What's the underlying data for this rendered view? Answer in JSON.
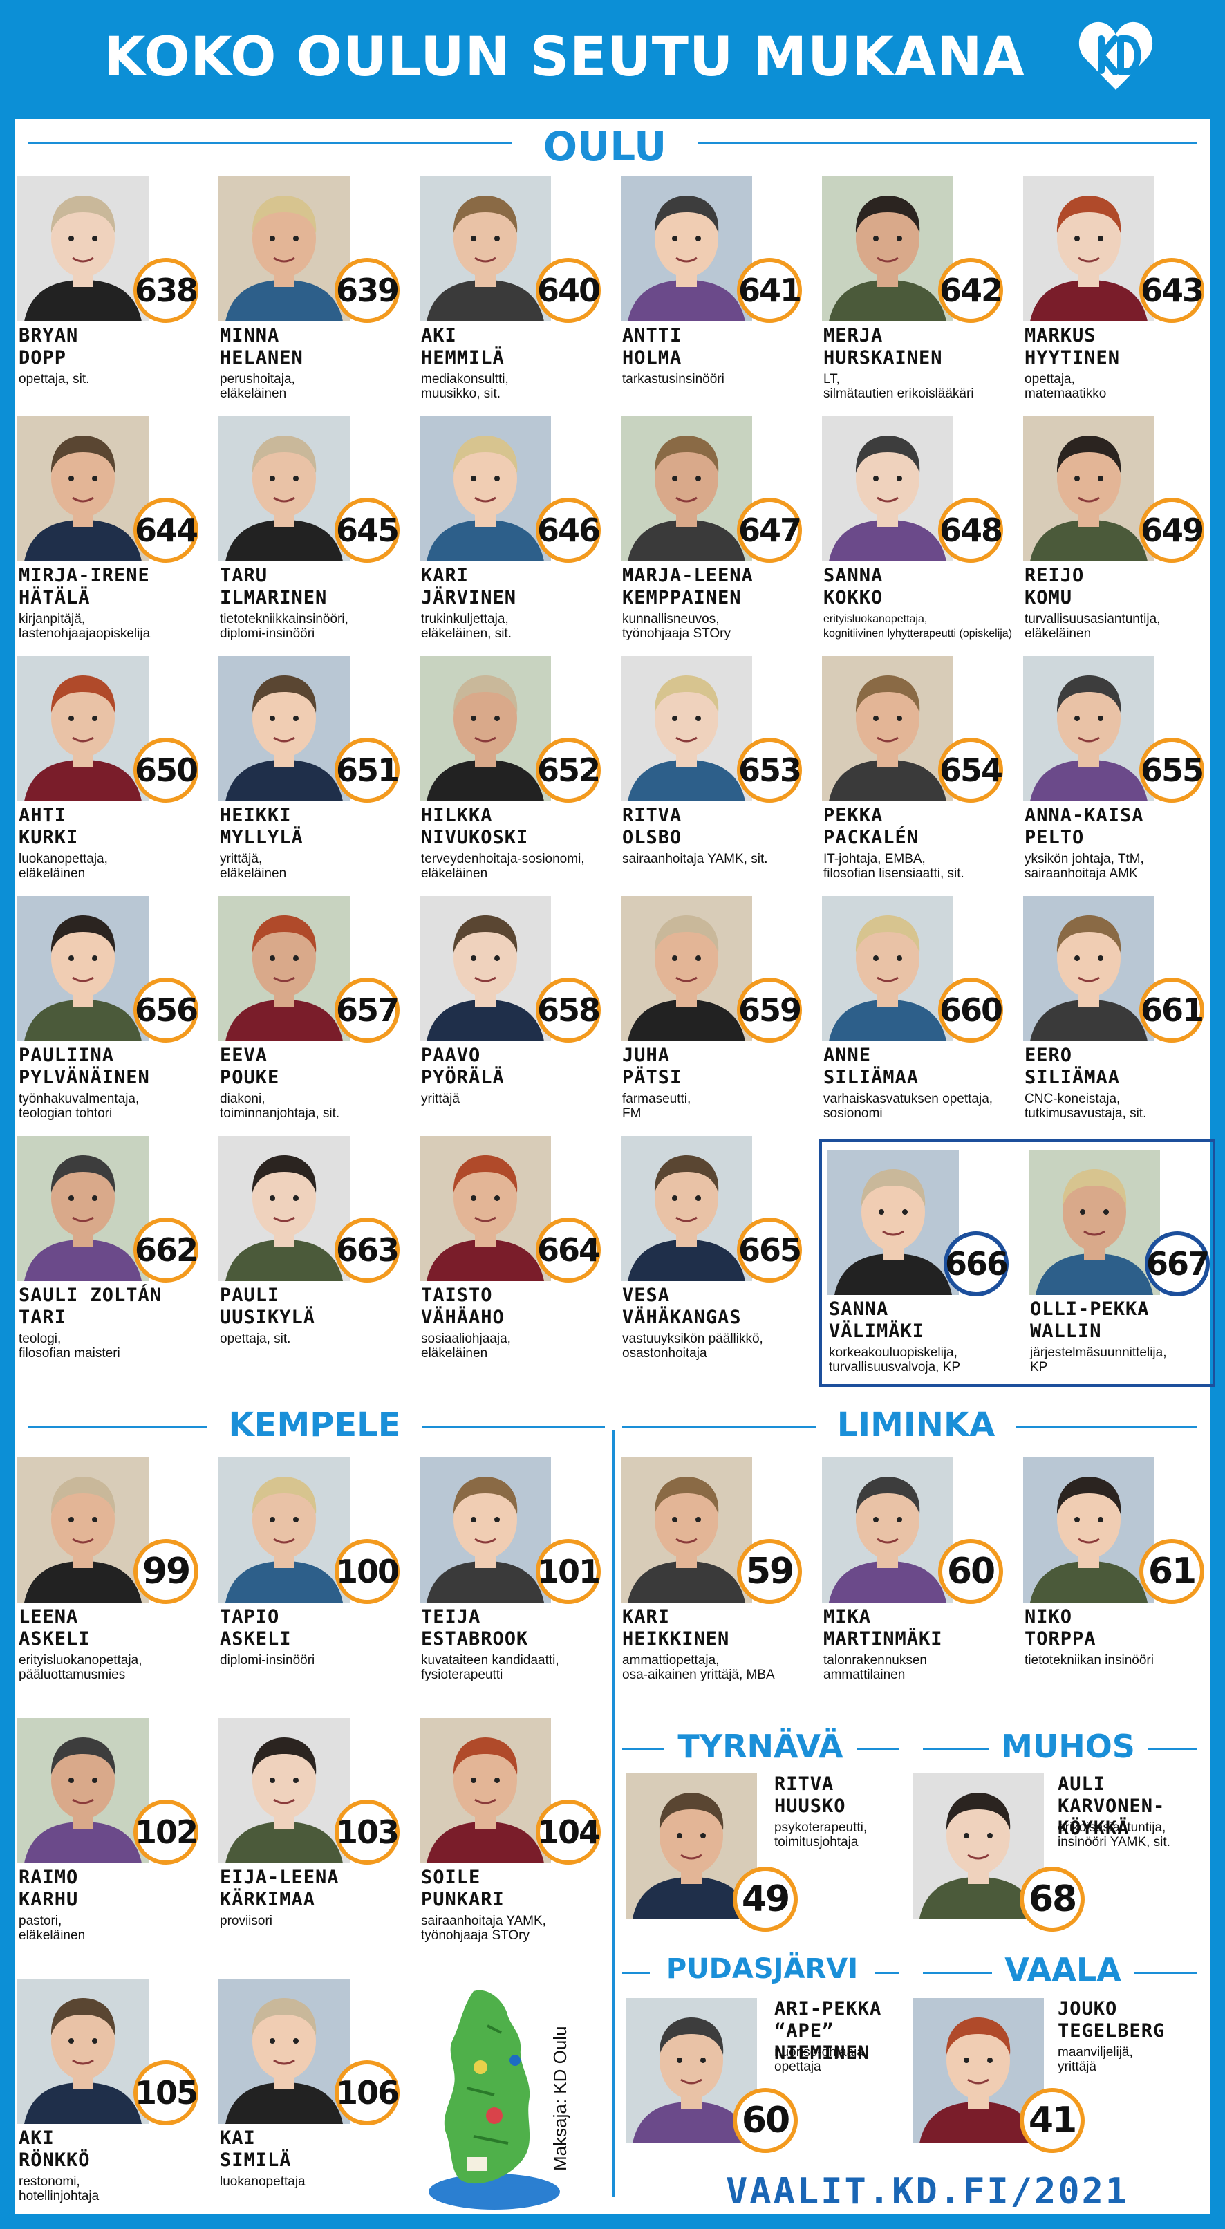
{
  "header": {
    "title": "KOKO OULUN SEUTU MUKANA",
    "logo": "kd-heart-logo"
  },
  "colors": {
    "accent": "#0c8fd6",
    "badge_border": "#f39a1e",
    "highlight": "#1c4f9c"
  },
  "sections": {
    "oulu": "OULU",
    "kempele": "KEMPELE",
    "liminka": "LIMINKA",
    "tyrnava": "TYRNÄVÄ",
    "muhos": "MUHOS",
    "pudasjarvi": "PUDASJÄRVI",
    "vaala": "VAALA"
  },
  "oulu": [
    {
      "num": "638",
      "name": "BRYAN\nDOPP",
      "occ": "opettaja, sit."
    },
    {
      "num": "639",
      "name": "MINNA\nHELANEN",
      "occ": "perushoitaja,\neläkeläinen"
    },
    {
      "num": "640",
      "name": "AKI\nHEMMILÄ",
      "occ": "mediakonsultti,\nmuusikko, sit."
    },
    {
      "num": "641",
      "name": "ANTTI\nHOLMA",
      "occ": "tarkastusinsinööri"
    },
    {
      "num": "642",
      "name": "MERJA\nHURSKAINEN",
      "occ": "LT,\nsilmätautien erikoislääkäri"
    },
    {
      "num": "643",
      "name": "MARKUS\nHYYTINEN",
      "occ": "opettaja,\nmatemaatikko"
    },
    {
      "num": "644",
      "name": "MIRJA-IRENE\nHÄTÄLÄ",
      "occ": "kirjanpitäjä,\nlastenohjaajaopiskelija"
    },
    {
      "num": "645",
      "name": "TARU\nILMARINEN",
      "occ": "tietotekniikkainsinööri,\ndiplomi-insinööri"
    },
    {
      "num": "646",
      "name": "KARI\nJÄRVINEN",
      "occ": "trukinkuljettaja,\neläkeläinen, sit."
    },
    {
      "num": "647",
      "name": "MARJA-LEENA\nKEMPPAINEN",
      "occ": "kunnallisneuvos,\ntyönohjaaja STOry"
    },
    {
      "num": "648",
      "name": "SANNA\nKOKKO",
      "occ": "erityisluokanopettaja,\nkognitiivinen lyhytterapeutti (opiskelija)"
    },
    {
      "num": "649",
      "name": "REIJO\nKOMU",
      "occ": "turvallisuusasiantuntija,\neläkeläinen"
    },
    {
      "num": "650",
      "name": "AHTI\nKURKI",
      "occ": "luokanopettaja,\neläkeläinen"
    },
    {
      "num": "651",
      "name": "HEIKKI\nMYLLYLÄ",
      "occ": "yrittäjä,\neläkeläinen"
    },
    {
      "num": "652",
      "name": "HILKKA\nNIVUKOSKI",
      "occ": "terveydenhoitaja-sosionomi,\neläkeläinen"
    },
    {
      "num": "653",
      "name": "RITVA\nOLSBO",
      "occ": "sairaanhoitaja YAMK, sit."
    },
    {
      "num": "654",
      "name": "PEKKA\nPACKALÉN",
      "occ": "IT-johtaja, EMBA,\nfilosofian lisensiaatti, sit."
    },
    {
      "num": "655",
      "name": "ANNA-KAISA\nPELTO",
      "occ": "yksikön johtaja, TtM,\nsairaanhoitaja AMK"
    },
    {
      "num": "656",
      "name": "PAULIINA\nPYLVÄNÄINEN",
      "occ": "työnhakuvalmentaja,\nteologian tohtori"
    },
    {
      "num": "657",
      "name": "EEVA\nPOUKE",
      "occ": "diakoni,\ntoiminnanjohtaja, sit."
    },
    {
      "num": "658",
      "name": "PAAVO\nPYÖRÄLÄ",
      "occ": "yrittäjä"
    },
    {
      "num": "659",
      "name": "JUHA\nPÄTSI",
      "occ": "farmaseutti,\nFM"
    },
    {
      "num": "660",
      "name": "ANNE\nSILIÄMAA",
      "occ": "varhaiskasvatuksen opettaja,\nsosionomi"
    },
    {
      "num": "661",
      "name": "EERO\nSILIÄMAA",
      "occ": "CNC-koneistaja,\ntutkimusavustaja, sit."
    },
    {
      "num": "662",
      "name": "SAULI ZOLTÁN\nTARI",
      "occ": "teologi,\nfilosofian maisteri"
    },
    {
      "num": "663",
      "name": "PAULI\nUUSIKYLÄ",
      "occ": "opettaja, sit."
    },
    {
      "num": "664",
      "name": "TAISTO\nVÄHÄAHO",
      "occ": "sosiaaliohjaaja,\neläkeläinen"
    },
    {
      "num": "665",
      "name": "VESA\nVÄHÄKANGAS",
      "occ": "vastuuyksikön päällikkö,\nosastonhoitaja"
    },
    {
      "num": "666",
      "name": "SANNA\nVÄLIMÄKI",
      "occ": "korkeakouluopiskelija,\nturvallisuusvalvoja, KP"
    },
    {
      "num": "667",
      "name": "OLLI-PEKKA\nWALLIN",
      "occ": "järjestelmäsuunnittelija,\nKP"
    }
  ],
  "kempele": [
    {
      "num": "99",
      "name": "LEENA\nASKELI",
      "occ": "erityisluokanopettaja,\npääluottamusmies"
    },
    {
      "num": "100",
      "name": "TAPIO\nASKELI",
      "occ": "diplomi-insinööri"
    },
    {
      "num": "101",
      "name": "TEIJA\nESTABROOK",
      "occ": "kuvataiteen kandidaatti,\nfysioterapeutti"
    },
    {
      "num": "102",
      "name": "RAIMO\nKARHU",
      "occ": "pastori,\neläkeläinen"
    },
    {
      "num": "103",
      "name": "EIJA-LEENA\nKÄRKIMAA",
      "occ": "proviisori"
    },
    {
      "num": "104",
      "name": "SOILE\nPUNKARI",
      "occ": "sairaanhoitaja YAMK,\ntyönohjaaja STOry"
    },
    {
      "num": "105",
      "name": "AKI\nRÖNKKÖ",
      "occ": "restonomi,\nhotellinjohtaja"
    },
    {
      "num": "106",
      "name": "KAI\nSIMILÄ",
      "occ": "luokanopettaja"
    }
  ],
  "liminka": [
    {
      "num": "59",
      "name": "KARI\nHEIKKINEN",
      "occ": "ammattiopettaja,\nosa-aikainen yrittäjä, MBA"
    },
    {
      "num": "60",
      "name": "MIKA\nMARTINMÄKI",
      "occ": "talonrakennuksen\nammattilainen"
    },
    {
      "num": "61",
      "name": "NIKO\nTORPPA",
      "occ": "tietotekniikan insinööri"
    }
  ],
  "tyrnava": {
    "num": "49",
    "name": "RITVA\nHUUSKO",
    "occ": "psykoterapeutti,\ntoimitusjohtaja"
  },
  "muhos": {
    "num": "68",
    "name": "AULI\nKARVONEN-KÖYKKÄ",
    "occ": "erikoisasiantuntija,\ninsinööri YAMK, sit."
  },
  "pudasjarvi": {
    "num": "60",
    "name": "ARI-PEKKA “APE”\nNIEMINEN",
    "occ": "nuoriso-ohjaaja,\nopettaja"
  },
  "vaala": {
    "num": "41",
    "name": "JOUKO\nTEGELBERG",
    "occ": "maanviljelijä,\nyrittäjä"
  },
  "footer": {
    "url": "VAALIT.KD.FI/2021",
    "payer": "Maksaja: KD Oulu"
  }
}
